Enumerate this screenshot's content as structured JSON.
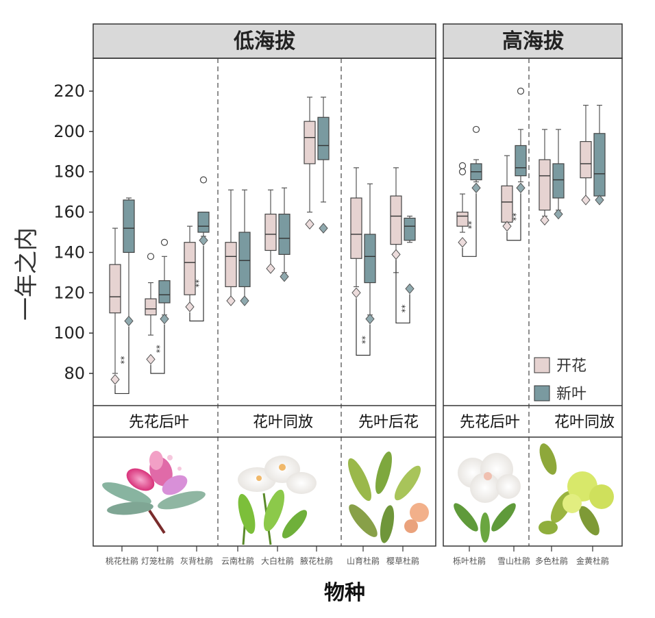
{
  "chart_data": {
    "type": "box",
    "ylabel": "一年之内",
    "xlabel": "物种",
    "ylim": [
      70,
      228
    ],
    "yticks": [
      80,
      100,
      120,
      140,
      160,
      180,
      200,
      220
    ],
    "panels": [
      {
        "title": "低海拔",
        "groups": [
          {
            "label": "先花后叶",
            "species": [
              "桃花杜鹃",
              "灯笼杜鹃",
              "灰背杜鹃"
            ]
          },
          {
            "label": "花叶同放",
            "species": [
              "云南杜鹃",
              "大白杜鹃",
              "腋花杜鹃"
            ]
          },
          {
            "label": "先叶后花",
            "species": [
              "山育杜鹃",
              "樱草杜鹃"
            ]
          }
        ]
      },
      {
        "title": "高海拔",
        "groups": [
          {
            "label": "先花后叶",
            "species": [
              "栎叶杜鹃",
              "雪山杜鹃"
            ]
          },
          {
            "label": "花叶同放",
            "species": [
              "多色杜鹃",
              "金黄杜鹃"
            ]
          }
        ]
      }
    ],
    "legend": {
      "position": "bottom-right",
      "entries": [
        "开花",
        "新叶"
      ]
    },
    "colors": {
      "flower": "#e6d3d1",
      "leaf": "#7a9aa0",
      "diamond": "#8fa9ae",
      "border": "#333333",
      "strip": "#d9d9d9"
    },
    "series": [
      {
        "name": "开花",
        "boxes": [
          {
            "species": "桃花杜鹃",
            "min": 80,
            "q1": 110,
            "median": 118,
            "q3": 134,
            "max": 152,
            "outliers": [],
            "mean": 77
          },
          {
            "species": "灯笼杜鹃",
            "min": 99,
            "q1": 109,
            "median": 112,
            "q3": 117,
            "max": 125,
            "outliers": [
              138
            ],
            "mean": 87
          },
          {
            "species": "灰背杜鹃",
            "min": 112,
            "q1": 119,
            "median": 135,
            "q3": 145,
            "max": 153,
            "outliers": [],
            "mean": 113
          },
          {
            "species": "云南杜鹃",
            "min": 117,
            "q1": 123,
            "median": 138,
            "q3": 145,
            "max": 171,
            "outliers": [],
            "mean": 116
          },
          {
            "species": "大白杜鹃",
            "min": 133,
            "q1": 141,
            "median": 149,
            "q3": 159,
            "max": 171,
            "outliers": [],
            "mean": 132
          },
          {
            "species": "腋花杜鹃",
            "min": 160,
            "q1": 184,
            "median": 197,
            "q3": 205,
            "max": 217,
            "outliers": [],
            "mean": 154
          },
          {
            "species": "山育杜鹃",
            "min": 123,
            "q1": 137,
            "median": 149,
            "q3": 167,
            "max": 182,
            "outliers": [],
            "mean": 120
          },
          {
            "species": "樱草杜鹃",
            "min": 130,
            "q1": 144,
            "median": 158,
            "q3": 168,
            "max": 182,
            "outliers": [],
            "mean": 139
          },
          {
            "species": "栎叶杜鹃",
            "min": 150,
            "q1": 153,
            "median": 158,
            "q3": 160,
            "max": 169,
            "outliers": [
              180,
              183
            ],
            "mean": 145
          },
          {
            "species": "雪山杜鹃",
            "min": 154,
            "q1": 155,
            "median": 165,
            "q3": 173,
            "max": 188,
            "outliers": [],
            "mean": 153
          },
          {
            "species": "多色杜鹃",
            "min": 158,
            "q1": 161,
            "median": 178,
            "q3": 186,
            "max": 201,
            "outliers": [],
            "mean": 156
          },
          {
            "species": "金黄杜鹃",
            "min": 167,
            "q1": 177,
            "median": 184,
            "q3": 195,
            "max": 213,
            "outliers": [],
            "mean": 166
          }
        ]
      },
      {
        "name": "新叶",
        "boxes": [
          {
            "species": "桃花杜鹃",
            "min": 107,
            "q1": 140,
            "median": 152,
            "q3": 166,
            "max": 167,
            "outliers": [],
            "mean": 106
          },
          {
            "species": "灯笼杜鹃",
            "min": 109,
            "q1": 115,
            "median": 119,
            "q3": 126,
            "max": 138,
            "outliers": [
              145
            ],
            "mean": 107
          },
          {
            "species": "灰背杜鹃",
            "min": 148,
            "q1": 150,
            "median": 153,
            "q3": 160,
            "max": 160,
            "outliers": [
              176
            ],
            "mean": 146
          },
          {
            "species": "云南杜鹃",
            "min": 117,
            "q1": 123,
            "median": 136,
            "q3": 150,
            "max": 171,
            "outliers": [],
            "mean": 116
          },
          {
            "species": "大白杜鹃",
            "min": 130,
            "q1": 139,
            "median": 147,
            "q3": 159,
            "max": 172,
            "outliers": [],
            "mean": 128
          },
          {
            "species": "腋花杜鹃",
            "min": 165,
            "q1": 186,
            "median": 193,
            "q3": 207,
            "max": 217,
            "outliers": [],
            "mean": 152
          },
          {
            "species": "山育杜鹃",
            "min": 109,
            "q1": 125,
            "median": 138,
            "q3": 149,
            "max": 174,
            "outliers": [],
            "mean": 107
          },
          {
            "species": "樱草杜鹃",
            "min": 145,
            "q1": 146,
            "median": 153,
            "q3": 157,
            "max": 158,
            "outliers": [],
            "mean": 122
          },
          {
            "species": "栎叶杜鹃",
            "min": 175,
            "q1": 176,
            "median": 180,
            "q3": 184,
            "max": 186,
            "outliers": [
              201
            ],
            "mean": 172
          },
          {
            "species": "雪山杜鹃",
            "min": 175,
            "q1": 178,
            "median": 182,
            "q3": 193,
            "max": 201,
            "outliers": [
              220
            ],
            "mean": 172
          },
          {
            "species": "多色杜鹃",
            "min": 161,
            "q1": 167,
            "median": 176,
            "q3": 184,
            "max": 201,
            "outliers": [],
            "mean": 159
          },
          {
            "species": "金黄杜鹃",
            "min": 165,
            "q1": 168,
            "median": 179,
            "q3": 199,
            "max": 213,
            "outliers": [],
            "mean": 166
          }
        ]
      }
    ],
    "significance": [
      {
        "species": "桃花杜鹃",
        "label": "**",
        "y": 70
      },
      {
        "species": "灯笼杜鹃",
        "label": "**",
        "y": 80
      },
      {
        "species": "灰背杜鹃",
        "label": "**",
        "y": 106
      },
      {
        "species": "山育杜鹃",
        "label": "**",
        "y": 89
      },
      {
        "species": "樱草杜鹃",
        "label": "**",
        "y": 105
      },
      {
        "species": "栎叶杜鹃",
        "label": "**",
        "y": 138
      },
      {
        "species": "雪山杜鹃",
        "label": "**",
        "y": 146
      }
    ]
  }
}
